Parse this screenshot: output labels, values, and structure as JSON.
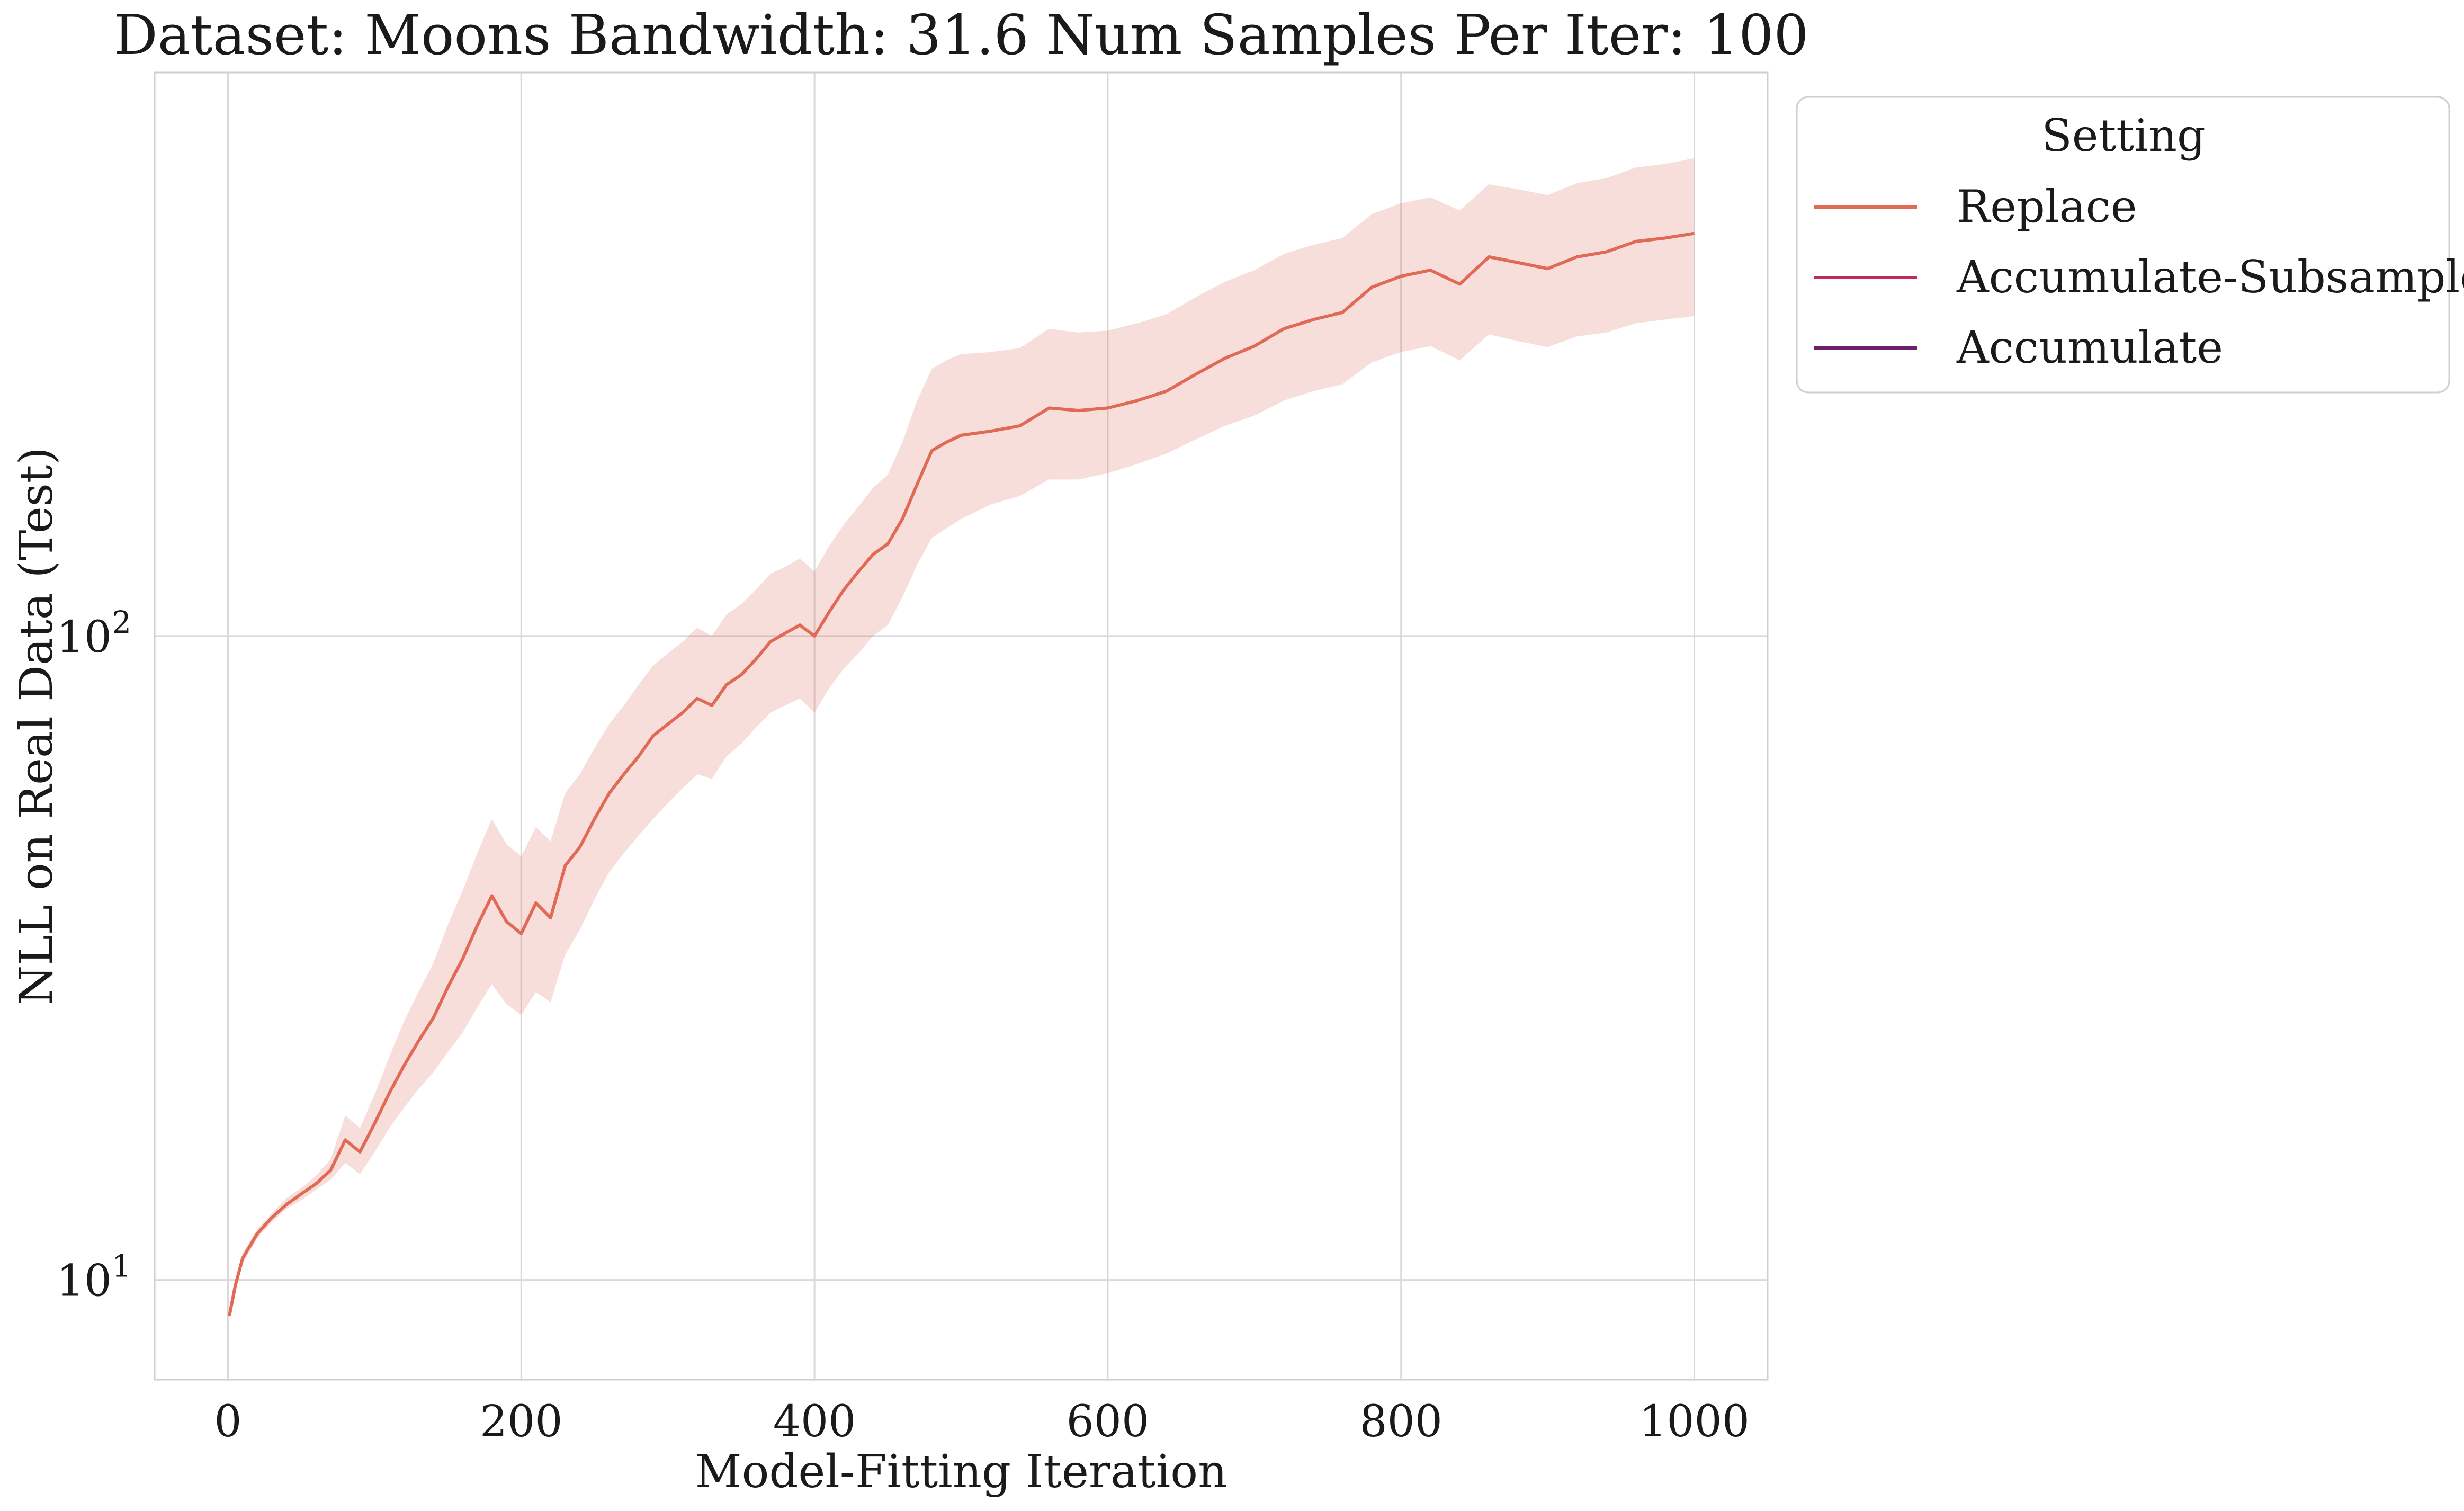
{
  "chart_data": {
    "type": "line",
    "title": "Dataset: Moons Bandwidth: 31.6 Num Samples Per Iter: 100",
    "xlabel": "Model-Fitting Iteration",
    "ylabel": "NLL on Real Data (Test)",
    "xlim": [
      -50,
      1050
    ],
    "ylim": [
      7.0,
      750
    ],
    "yscale": "log",
    "grid": true,
    "x_ticks": [
      {
        "value": 0,
        "label": "0"
      },
      {
        "value": 200,
        "label": "200"
      },
      {
        "value": 400,
        "label": "400"
      },
      {
        "value": 600,
        "label": "600"
      },
      {
        "value": 800,
        "label": "800"
      },
      {
        "value": 1000,
        "label": "1000"
      }
    ],
    "y_ticks": [
      {
        "value": 10,
        "base": "10",
        "exp": "1"
      },
      {
        "value": 100,
        "base": "10",
        "exp": "2"
      }
    ],
    "legend": {
      "title": "Setting",
      "placement": "outside-right",
      "entries": [
        {
          "name": "Replace",
          "color": "#e06a55"
        },
        {
          "name": "Accumulate-Subsample",
          "color": "#c22a5f"
        },
        {
          "name": "Accumulate",
          "color": "#6d1f6e"
        }
      ]
    },
    "series": [
      {
        "name": "Replace",
        "color": "#e06a55",
        "x": [
          1,
          5,
          10,
          20,
          30,
          40,
          50,
          60,
          70,
          80,
          90,
          100,
          110,
          120,
          130,
          140,
          150,
          160,
          170,
          180,
          190,
          200,
          210,
          220,
          230,
          240,
          250,
          260,
          270,
          280,
          290,
          300,
          310,
          320,
          330,
          340,
          350,
          360,
          370,
          380,
          390,
          400,
          410,
          420,
          430,
          440,
          450,
          460,
          470,
          480,
          490,
          500,
          520,
          540,
          560,
          580,
          600,
          620,
          640,
          660,
          680,
          700,
          720,
          740,
          760,
          780,
          800,
          820,
          840,
          860,
          880,
          900,
          920,
          940,
          960,
          980,
          1000
        ],
        "y": [
          8.8,
          9.8,
          10.8,
          11.8,
          12.5,
          13.1,
          13.6,
          14.1,
          14.8,
          16.5,
          15.8,
          17.5,
          19.5,
          21.5,
          23.5,
          25.5,
          28.5,
          31.5,
          35.5,
          39.5,
          36.0,
          34.5,
          38.5,
          36.5,
          44.0,
          47.0,
          52.0,
          57.0,
          61.0,
          65.0,
          70.0,
          73.0,
          76.0,
          80.0,
          78.0,
          84.0,
          87.0,
          92.0,
          98.0,
          101.0,
          104.0,
          100.0,
          109.0,
          118.0,
          126.0,
          134.0,
          139.0,
          152.0,
          172.0,
          194.0,
          200.0,
          205.0,
          208.0,
          212.0,
          226.0,
          224.0,
          226.0,
          232.0,
          240.0,
          255.0,
          270.0,
          282.0,
          300.0,
          310.0,
          318.0,
          348.0,
          362.0,
          370.0,
          352.0,
          388.0,
          380.0,
          372.0,
          388.0,
          395.0,
          410.0,
          415.0,
          422.0
        ],
        "y_lower": [
          8.7,
          9.6,
          10.6,
          11.6,
          12.3,
          12.9,
          13.3,
          13.8,
          14.3,
          15.2,
          14.6,
          15.8,
          17.2,
          18.5,
          19.8,
          21.0,
          22.6,
          24.2,
          26.5,
          28.8,
          26.8,
          25.8,
          28.0,
          27.0,
          32.0,
          35.0,
          39.0,
          43.0,
          46.0,
          49.0,
          52.0,
          55.0,
          58.0,
          61.0,
          60.0,
          65.0,
          68.0,
          72.0,
          76.0,
          78.0,
          80.0,
          76.0,
          83.0,
          89.0,
          94.0,
          100.0,
          104.0,
          115.0,
          129.0,
          142.0,
          147.0,
          152.0,
          160.0,
          165.0,
          175.0,
          175.0,
          179.0,
          185.0,
          192.0,
          202.0,
          212.0,
          220.0,
          232.0,
          240.0,
          246.0,
          266.0,
          276.0,
          282.0,
          268.0,
          294.0,
          287.0,
          281.0,
          292.0,
          296.0,
          306.0,
          310.0,
          314.0
        ],
        "y_upper": [
          8.9,
          10.0,
          11.0,
          12.0,
          12.7,
          13.4,
          13.9,
          14.5,
          15.4,
          18.0,
          17.2,
          19.4,
          22.2,
          25.2,
          28.0,
          31.0,
          35.6,
          40.2,
          46.0,
          52.0,
          47.5,
          45.5,
          50.5,
          48.0,
          57.0,
          61.0,
          67.0,
          73.0,
          78.0,
          84.0,
          90.0,
          94.0,
          98.0,
          103.0,
          100.0,
          108.0,
          112.0,
          118.0,
          125.0,
          128.0,
          132.0,
          126.0,
          138.0,
          149.0,
          159.0,
          170.0,
          178.0,
          200.0,
          232.0,
          260.0,
          268.0,
          274.0,
          276.0,
          280.0,
          300.0,
          296.0,
          298.0,
          306.0,
          316.0,
          336.0,
          355.0,
          370.0,
          392.0,
          405.0,
          415.0,
          452.0,
          470.0,
          480.0,
          458.0,
          503.0,
          494.0,
          484.0,
          505.0,
          514.0,
          534.0,
          541.0,
          552.0
        ]
      }
    ]
  }
}
